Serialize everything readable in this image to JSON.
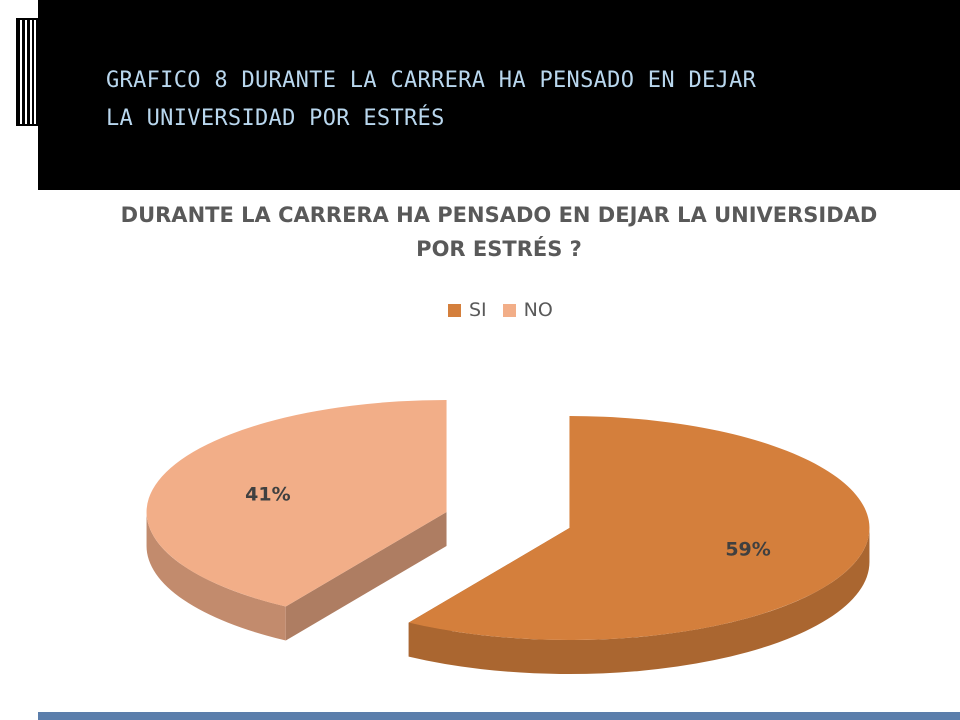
{
  "slide": {
    "title_lines": [
      "GRAFICO 8 DURANTE LA CARRERA HA PENSADO EN DEJAR",
      "LA UNIVERSIDAD POR ESTRÉS"
    ],
    "colors": {
      "header_bg": "#000000",
      "title_text": "#b9d7ee",
      "footer_bar": "#5b7eab"
    }
  },
  "chart_data": {
    "type": "pie",
    "style": "3d-exploded",
    "title_lines": [
      "DURANTE LA CARRERA HA PENSADO EN DEJAR LA UNIVERSIDAD",
      "POR ESTRÉS ?"
    ],
    "legend_position": "top",
    "slices": [
      {
        "label": "SI",
        "value": 59,
        "display": "59%",
        "color": "#d47f3c"
      },
      {
        "label": "NO",
        "value": 41,
        "display": "41%",
        "color": "#f2ae88"
      }
    ]
  }
}
